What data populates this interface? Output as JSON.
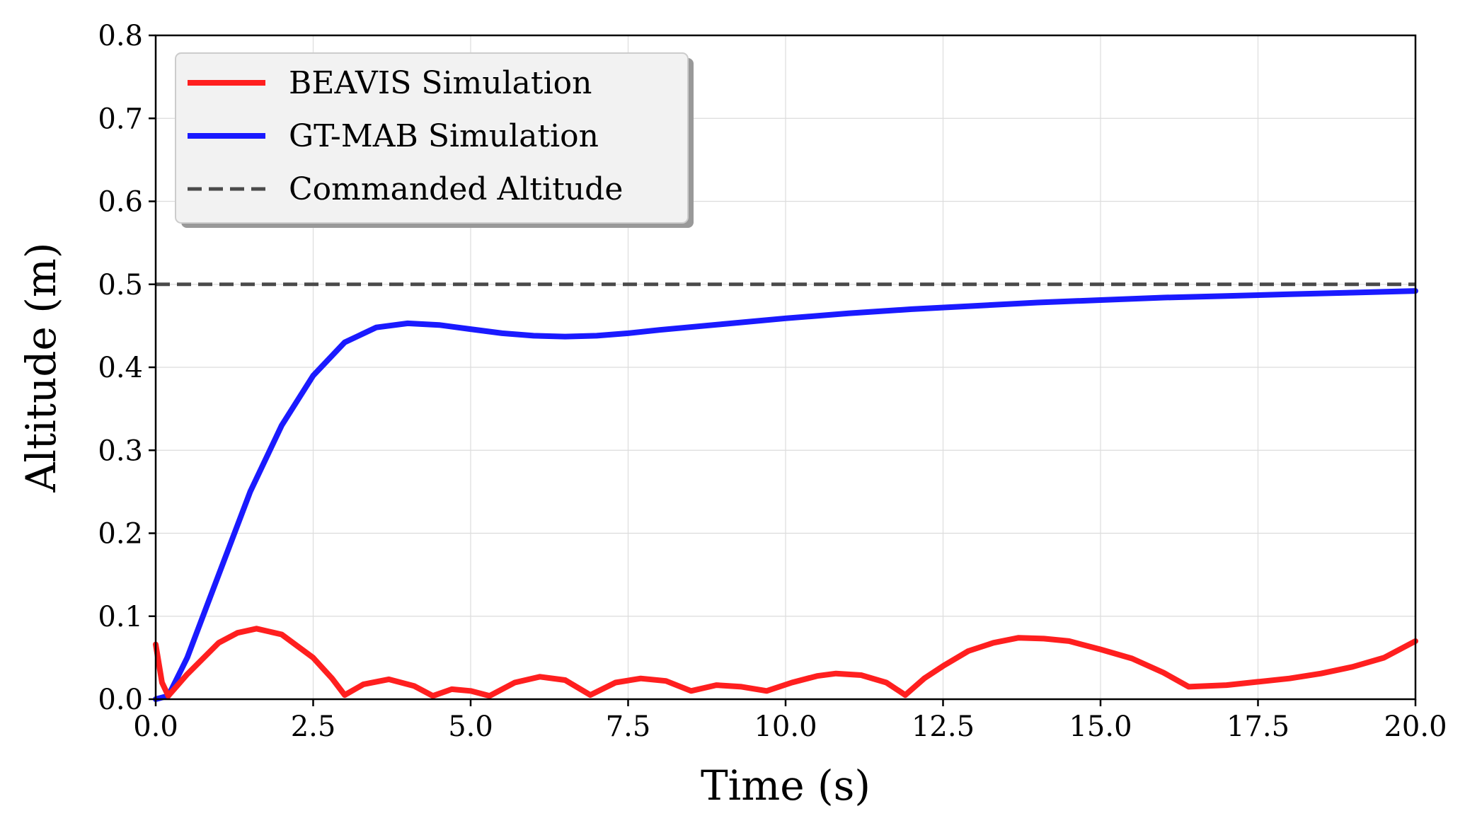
{
  "chart_data": {
    "type": "line",
    "title": "",
    "xlabel": "Time (s)",
    "ylabel": "Altitude (m)",
    "xlim": [
      0,
      20
    ],
    "ylim": [
      0,
      0.8
    ],
    "x_ticks": [
      "0.0",
      "2.5",
      "5.0",
      "7.5",
      "10.0",
      "12.5",
      "15.0",
      "17.5",
      "20.0"
    ],
    "y_ticks": [
      "0.0",
      "0.1",
      "0.2",
      "0.3",
      "0.4",
      "0.5",
      "0.6",
      "0.7",
      "0.8"
    ],
    "grid": true,
    "legend_position": "top-left",
    "colors": {
      "beavis": "#ff1f1f",
      "gtmab": "#1a1aff",
      "commanded": "#4a4a4a"
    },
    "series": [
      {
        "name": "BEAVIS Simulation",
        "color_key": "beavis",
        "style": "solid",
        "x": [
          0,
          0.1,
          0.2,
          0.5,
          1.0,
          1.3,
          1.6,
          2.0,
          2.5,
          2.8,
          3.0,
          3.3,
          3.7,
          4.1,
          4.4,
          4.7,
          5.0,
          5.3,
          5.7,
          6.1,
          6.5,
          6.9,
          7.3,
          7.7,
          8.1,
          8.5,
          8.9,
          9.3,
          9.7,
          10.1,
          10.5,
          10.8,
          11.2,
          11.6,
          11.9,
          12.2,
          12.5,
          12.9,
          13.3,
          13.7,
          14.1,
          14.5,
          15.0,
          15.5,
          16.0,
          16.4,
          17.0,
          17.5,
          18.0,
          18.5,
          19.0,
          19.5,
          20.0
        ],
        "y": [
          0.066,
          0.02,
          0.004,
          0.03,
          0.068,
          0.08,
          0.085,
          0.078,
          0.05,
          0.025,
          0.005,
          0.018,
          0.024,
          0.016,
          0.004,
          0.012,
          0.01,
          0.004,
          0.02,
          0.027,
          0.023,
          0.005,
          0.02,
          0.025,
          0.022,
          0.01,
          0.017,
          0.015,
          0.01,
          0.02,
          0.028,
          0.031,
          0.029,
          0.02,
          0.005,
          0.025,
          0.04,
          0.058,
          0.068,
          0.074,
          0.073,
          0.07,
          0.06,
          0.049,
          0.032,
          0.015,
          0.017,
          0.021,
          0.025,
          0.031,
          0.039,
          0.05,
          0.07
        ]
      },
      {
        "name": "GT-MAB Simulation",
        "color_key": "gtmab",
        "style": "solid",
        "x": [
          0,
          0.2,
          0.5,
          1.0,
          1.5,
          2.0,
          2.5,
          3.0,
          3.5,
          4.0,
          4.5,
          5.0,
          5.5,
          6.0,
          6.5,
          7.0,
          7.5,
          8.0,
          9.0,
          10.0,
          11.0,
          12.0,
          13.0,
          14.0,
          15.0,
          16.0,
          17.0,
          18.0,
          19.0,
          20.0
        ],
        "y": [
          0.0,
          0.004,
          0.05,
          0.15,
          0.25,
          0.33,
          0.39,
          0.43,
          0.448,
          0.453,
          0.451,
          0.446,
          0.441,
          0.438,
          0.437,
          0.438,
          0.441,
          0.445,
          0.452,
          0.459,
          0.465,
          0.47,
          0.474,
          0.478,
          0.481,
          0.484,
          0.486,
          0.488,
          0.49,
          0.492
        ]
      },
      {
        "name": "Commanded Altitude",
        "color_key": "commanded",
        "style": "dashed",
        "x": [
          0,
          20
        ],
        "y": [
          0.5,
          0.5
        ]
      }
    ]
  }
}
